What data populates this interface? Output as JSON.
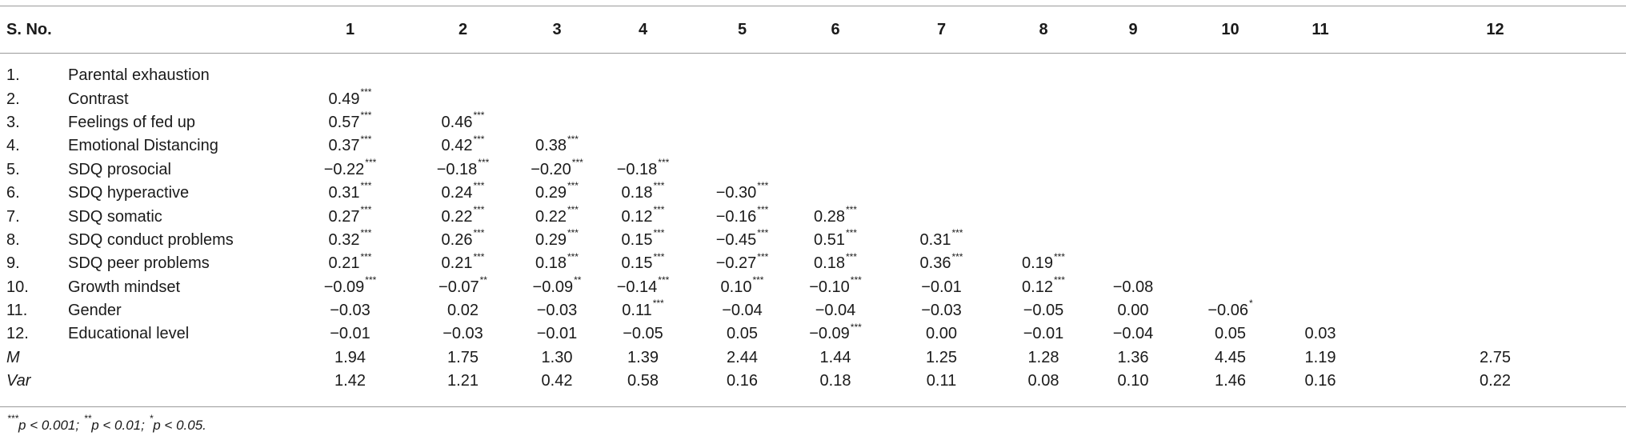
{
  "header": {
    "sno": "S. No.",
    "columns": [
      "1",
      "2",
      "3",
      "4",
      "5",
      "6",
      "7",
      "8",
      "9",
      "10",
      "11",
      "12"
    ]
  },
  "rows": [
    {
      "num": "1.",
      "label": "Parental exhaustion",
      "cells": []
    },
    {
      "num": "2.",
      "label": "Contrast",
      "cells": [
        {
          "v": "0.49",
          "s": "***"
        }
      ]
    },
    {
      "num": "3.",
      "label": "Feelings of fed up",
      "cells": [
        {
          "v": "0.57",
          "s": "***"
        },
        {
          "v": "0.46",
          "s": "***"
        }
      ]
    },
    {
      "num": "4.",
      "label": "Emotional Distancing",
      "cells": [
        {
          "v": "0.37",
          "s": "***"
        },
        {
          "v": "0.42",
          "s": "***"
        },
        {
          "v": "0.38",
          "s": "***"
        }
      ]
    },
    {
      "num": "5.",
      "label": "SDQ prosocial",
      "cells": [
        {
          "v": "−0.22",
          "s": "***"
        },
        {
          "v": "−0.18",
          "s": "***"
        },
        {
          "v": "−0.20",
          "s": "***"
        },
        {
          "v": "−0.18",
          "s": "***"
        }
      ]
    },
    {
      "num": "6.",
      "label": "SDQ hyperactive",
      "cells": [
        {
          "v": "0.31",
          "s": "***"
        },
        {
          "v": "0.24",
          "s": "***"
        },
        {
          "v": "0.29",
          "s": "***"
        },
        {
          "v": "0.18",
          "s": "***"
        },
        {
          "v": "−0.30",
          "s": "***"
        }
      ]
    },
    {
      "num": "7.",
      "label": "SDQ somatic",
      "cells": [
        {
          "v": "0.27",
          "s": "***"
        },
        {
          "v": "0.22",
          "s": "***"
        },
        {
          "v": "0.22",
          "s": "***"
        },
        {
          "v": "0.12",
          "s": "***"
        },
        {
          "v": "−0.16",
          "s": "***"
        },
        {
          "v": "0.28",
          "s": "***"
        }
      ]
    },
    {
      "num": "8.",
      "label": "SDQ conduct problems",
      "cells": [
        {
          "v": "0.32",
          "s": "***"
        },
        {
          "v": "0.26",
          "s": "***"
        },
        {
          "v": "0.29",
          "s": "***"
        },
        {
          "v": "0.15",
          "s": "***"
        },
        {
          "v": "−0.45",
          "s": "***"
        },
        {
          "v": "0.51",
          "s": "***"
        },
        {
          "v": "0.31",
          "s": "***"
        }
      ]
    },
    {
      "num": "9.",
      "label": "SDQ peer problems",
      "cells": [
        {
          "v": "0.21",
          "s": "***"
        },
        {
          "v": "0.21",
          "s": "***"
        },
        {
          "v": "0.18",
          "s": "***"
        },
        {
          "v": "0.15",
          "s": "***"
        },
        {
          "v": "−0.27",
          "s": "***"
        },
        {
          "v": "0.18",
          "s": "***"
        },
        {
          "v": "0.36",
          "s": "***"
        },
        {
          "v": "0.19",
          "s": "***"
        }
      ]
    },
    {
      "num": "10.",
      "label": "Growth mindset",
      "cells": [
        {
          "v": "−0.09",
          "s": "***"
        },
        {
          "v": "−0.07",
          "s": "**"
        },
        {
          "v": "−0.09",
          "s": "**"
        },
        {
          "v": "−0.14",
          "s": "***"
        },
        {
          "v": "0.10",
          "s": "***"
        },
        {
          "v": "−0.10",
          "s": "***"
        },
        {
          "v": "−0.01",
          "s": ""
        },
        {
          "v": "0.12",
          "s": "***"
        },
        {
          "v": "−0.08",
          "s": ""
        }
      ]
    },
    {
      "num": "11.",
      "label": "Gender",
      "cells": [
        {
          "v": "−0.03",
          "s": ""
        },
        {
          "v": "0.02",
          "s": ""
        },
        {
          "v": "−0.03",
          "s": ""
        },
        {
          "v": "0.11",
          "s": "***"
        },
        {
          "v": "−0.04",
          "s": ""
        },
        {
          "v": "−0.04",
          "s": ""
        },
        {
          "v": "−0.03",
          "s": ""
        },
        {
          "v": "−0.05",
          "s": ""
        },
        {
          "v": "0.00",
          "s": ""
        },
        {
          "v": "−0.06",
          "s": "*"
        }
      ]
    },
    {
      "num": "12.",
      "label": "Educational level",
      "cells": [
        {
          "v": "−0.01",
          "s": ""
        },
        {
          "v": "−0.03",
          "s": ""
        },
        {
          "v": "−0.01",
          "s": ""
        },
        {
          "v": "−0.05",
          "s": ""
        },
        {
          "v": "0.05",
          "s": ""
        },
        {
          "v": "−0.09",
          "s": "***"
        },
        {
          "v": "0.00",
          "s": ""
        },
        {
          "v": "−0.01",
          "s": ""
        },
        {
          "v": "−0.04",
          "s": ""
        },
        {
          "v": "0.05",
          "s": ""
        },
        {
          "v": "0.03",
          "s": ""
        }
      ]
    }
  ],
  "stats": [
    {
      "label": "M",
      "values": [
        "1.94",
        "1.75",
        "1.30",
        "1.39",
        "2.44",
        "1.44",
        "1.25",
        "1.28",
        "1.36",
        "4.45",
        "1.19",
        "2.75"
      ]
    },
    {
      "label": "Var",
      "values": [
        "1.42",
        "1.21",
        "0.42",
        "0.58",
        "0.16",
        "0.18",
        "0.11",
        "0.08",
        "0.10",
        "1.46",
        "0.16",
        "0.22"
      ]
    }
  ],
  "footnote": {
    "parts": [
      {
        "sup": "***",
        "text": "p < 0.001; "
      },
      {
        "sup": "**",
        "text": "p < 0.01; "
      },
      {
        "sup": "*",
        "text": "p < 0.05."
      }
    ]
  }
}
